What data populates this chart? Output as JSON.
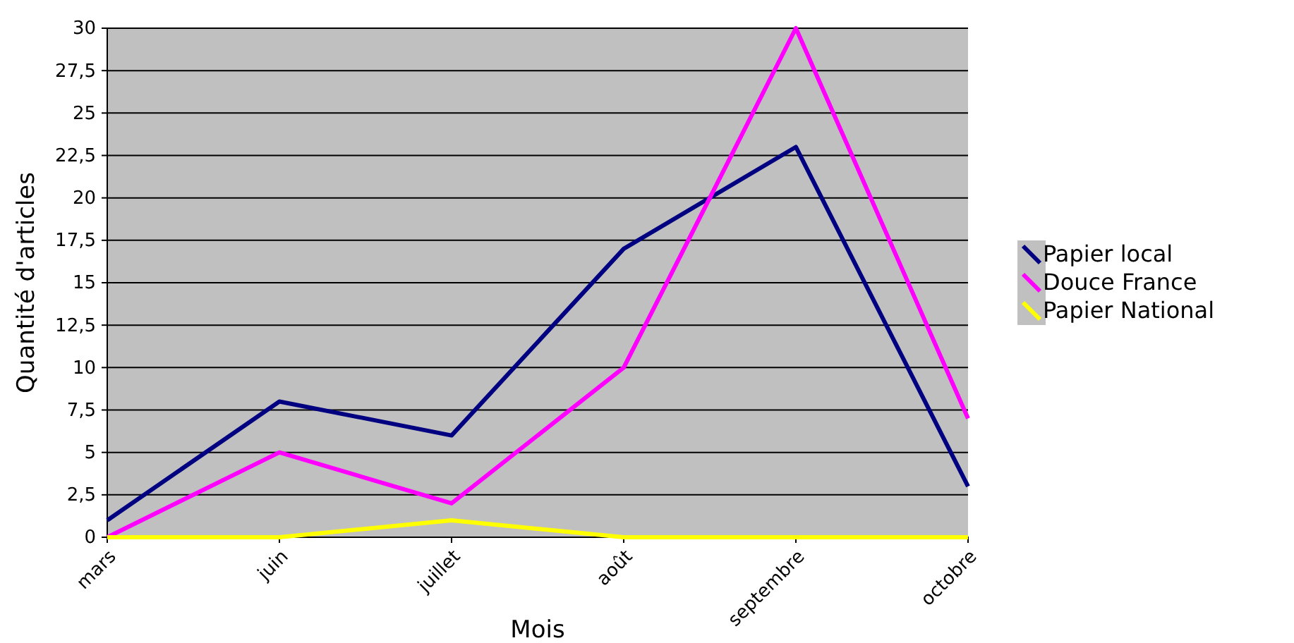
{
  "chart_data": {
    "type": "line",
    "xlabel": "Mois",
    "ylabel": "Quantité d'articles",
    "categories": [
      "mars",
      "juin",
      "juillet",
      "août",
      "septembre",
      "octobre"
    ],
    "series": [
      {
        "name": "Papier local",
        "color": "#000080",
        "values": [
          1,
          8,
          6,
          17,
          23,
          3
        ]
      },
      {
        "name": "Douce France",
        "color": "#ff00ff",
        "values": [
          0,
          5,
          2,
          10,
          30,
          7
        ]
      },
      {
        "name": "Papier National",
        "color": "#ffff00",
        "values": [
          0,
          0,
          1,
          0,
          0,
          0
        ]
      }
    ],
    "ylim": [
      0,
      30
    ],
    "yticks": [
      0,
      {
        "value": 2.5,
        "label": "2,5"
      },
      5,
      {
        "value": 7.5,
        "label": "7,5"
      },
      10,
      {
        "value": 12.5,
        "label": "12,5"
      },
      15,
      {
        "value": 17.5,
        "label": "17,5"
      },
      20,
      {
        "value": 22.5,
        "label": "22,5"
      },
      25,
      {
        "value": 27.5,
        "label": "27,5"
      },
      30
    ],
    "grid": "y",
    "legend": "right",
    "marker": "none",
    "line_style": "solid"
  }
}
